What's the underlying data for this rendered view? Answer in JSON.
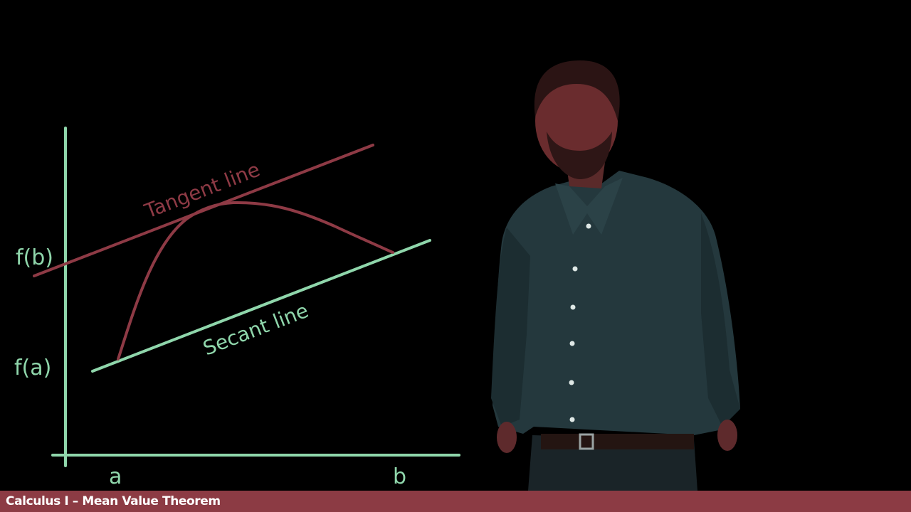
{
  "diagram": {
    "y_labels": {
      "fb": "f(b)",
      "fa": "f(a)"
    },
    "x_labels": {
      "a": "a",
      "b": "b"
    },
    "tangent_label": "Tangent line",
    "secant_label": "Secant line",
    "colors": {
      "axis": "#8fd6ab",
      "secant": "#8fd6ab",
      "curve": "#8e3a45",
      "tangent": "#8e3a45"
    }
  },
  "footer": {
    "title": "Calculus I – Mean Value Theorem",
    "background": "#8c3b44"
  }
}
